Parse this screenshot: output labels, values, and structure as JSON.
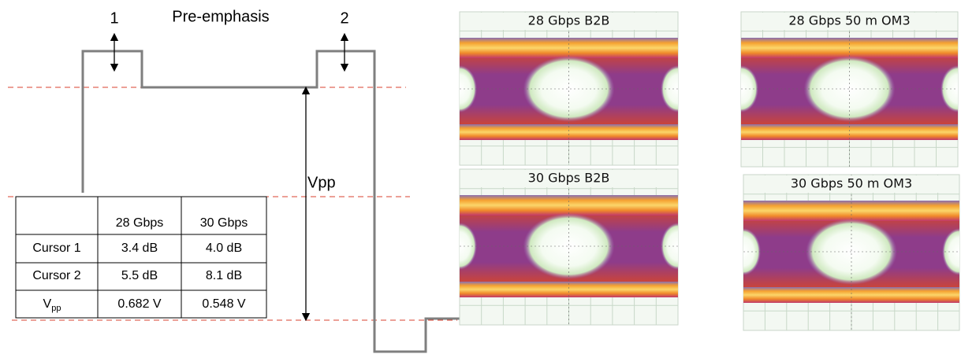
{
  "diagram": {
    "labels": {
      "cursor1": "1",
      "title": "Pre-emphasis",
      "cursor2": "2",
      "vpp": "Vpp"
    },
    "table": {
      "header": [
        "28 Gbps",
        "30 Gbps"
      ],
      "rows": [
        [
          "Cursor 1",
          "3.4 dB",
          "4.0 dB"
        ],
        [
          "Cursor 2",
          "5.5 dB",
          "8.1 dB"
        ],
        [
          {
            "text": "V",
            "subscript": "pp"
          },
          "0.682 V",
          "0.548 V"
        ]
      ]
    },
    "panels": [
      {
        "title": "28 Gbps B2B"
      },
      {
        "title": "30 Gbps B2B"
      },
      {
        "title": "28 Gbps 50 m OM3"
      },
      {
        "title": "30 Gbps 50 m OM3"
      }
    ]
  }
}
